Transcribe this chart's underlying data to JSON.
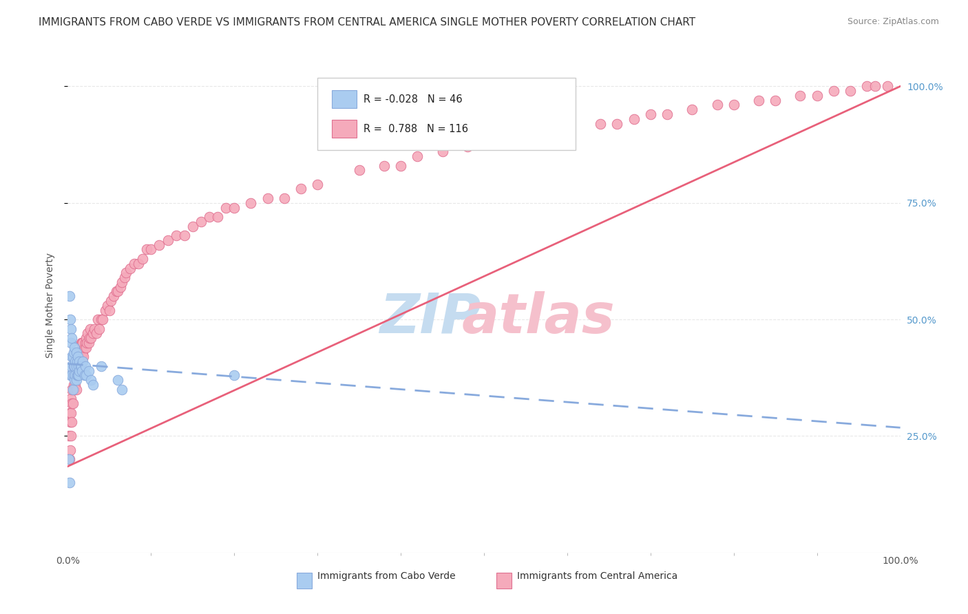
{
  "title": "IMMIGRANTS FROM CABO VERDE VS IMMIGRANTS FROM CENTRAL AMERICA SINGLE MOTHER POVERTY CORRELATION CHART",
  "source": "Source: ZipAtlas.com",
  "ylabel": "Single Mother Poverty",
  "y_tick_labels": [
    "25.0%",
    "50.0%",
    "75.0%",
    "100.0%"
  ],
  "y_tick_values": [
    0.25,
    0.5,
    0.75,
    1.0
  ],
  "x_tick_labels": [
    "0.0%",
    "100.0%"
  ],
  "x_tick_values": [
    0.0,
    1.0
  ],
  "legend_entries": [
    {
      "label": "Immigrants from Cabo Verde",
      "R": "-0.028",
      "N": "46",
      "color": "#aaccf0",
      "edge_color": "#88aadd"
    },
    {
      "label": "Immigrants from Central America",
      "R": "0.788",
      "N": "116",
      "color": "#f5aabb",
      "edge_color": "#e07090"
    }
  ],
  "cabo_verde_scatter": {
    "color": "#aaccf0",
    "edge_color": "#88aadd",
    "x": [
      0.001,
      0.002,
      0.002,
      0.003,
      0.003,
      0.004,
      0.004,
      0.004,
      0.005,
      0.005,
      0.005,
      0.006,
      0.006,
      0.007,
      0.007,
      0.007,
      0.008,
      0.008,
      0.008,
      0.009,
      0.009,
      0.01,
      0.01,
      0.01,
      0.011,
      0.011,
      0.012,
      0.012,
      0.013,
      0.013,
      0.014,
      0.014,
      0.015,
      0.016,
      0.017,
      0.018,
      0.02,
      0.021,
      0.022,
      0.025,
      0.028,
      0.03,
      0.04,
      0.06,
      0.065,
      0.2
    ],
    "y": [
      0.2,
      0.15,
      0.55,
      0.38,
      0.5,
      0.4,
      0.45,
      0.48,
      0.38,
      0.42,
      0.46,
      0.35,
      0.42,
      0.38,
      0.4,
      0.43,
      0.37,
      0.4,
      0.44,
      0.38,
      0.41,
      0.37,
      0.4,
      0.43,
      0.38,
      0.41,
      0.38,
      0.42,
      0.38,
      0.4,
      0.39,
      0.41,
      0.4,
      0.4,
      0.39,
      0.41,
      0.38,
      0.4,
      0.38,
      0.39,
      0.37,
      0.36,
      0.4,
      0.37,
      0.35,
      0.38
    ]
  },
  "central_america_scatter": {
    "color": "#f5aabb",
    "edge_color": "#e07090",
    "x": [
      0.001,
      0.002,
      0.002,
      0.003,
      0.003,
      0.004,
      0.004,
      0.004,
      0.005,
      0.005,
      0.005,
      0.006,
      0.006,
      0.007,
      0.007,
      0.008,
      0.008,
      0.008,
      0.009,
      0.009,
      0.01,
      0.01,
      0.01,
      0.011,
      0.011,
      0.012,
      0.012,
      0.013,
      0.013,
      0.014,
      0.015,
      0.015,
      0.016,
      0.016,
      0.017,
      0.017,
      0.018,
      0.018,
      0.019,
      0.02,
      0.021,
      0.022,
      0.022,
      0.023,
      0.024,
      0.025,
      0.026,
      0.027,
      0.028,
      0.03,
      0.032,
      0.034,
      0.036,
      0.038,
      0.04,
      0.042,
      0.045,
      0.048,
      0.05,
      0.052,
      0.055,
      0.058,
      0.06,
      0.063,
      0.065,
      0.068,
      0.07,
      0.075,
      0.08,
      0.085,
      0.09,
      0.095,
      0.1,
      0.11,
      0.12,
      0.13,
      0.14,
      0.15,
      0.16,
      0.17,
      0.18,
      0.19,
      0.2,
      0.22,
      0.24,
      0.26,
      0.28,
      0.3,
      0.35,
      0.38,
      0.4,
      0.42,
      0.45,
      0.48,
      0.5,
      0.52,
      0.55,
      0.58,
      0.6,
      0.64,
      0.66,
      0.68,
      0.7,
      0.72,
      0.75,
      0.78,
      0.8,
      0.83,
      0.85,
      0.88,
      0.9,
      0.92,
      0.94,
      0.96,
      0.97,
      0.985
    ],
    "y": [
      0.25,
      0.2,
      0.3,
      0.22,
      0.28,
      0.3,
      0.33,
      0.25,
      0.32,
      0.35,
      0.28,
      0.32,
      0.38,
      0.36,
      0.4,
      0.35,
      0.38,
      0.42,
      0.36,
      0.38,
      0.35,
      0.38,
      0.4,
      0.4,
      0.42,
      0.38,
      0.4,
      0.4,
      0.43,
      0.42,
      0.4,
      0.43,
      0.42,
      0.45,
      0.42,
      0.45,
      0.43,
      0.45,
      0.42,
      0.44,
      0.45,
      0.44,
      0.46,
      0.45,
      0.47,
      0.45,
      0.46,
      0.48,
      0.46,
      0.47,
      0.48,
      0.47,
      0.5,
      0.48,
      0.5,
      0.5,
      0.52,
      0.53,
      0.52,
      0.54,
      0.55,
      0.56,
      0.56,
      0.57,
      0.58,
      0.59,
      0.6,
      0.61,
      0.62,
      0.62,
      0.63,
      0.65,
      0.65,
      0.66,
      0.67,
      0.68,
      0.68,
      0.7,
      0.71,
      0.72,
      0.72,
      0.74,
      0.74,
      0.75,
      0.76,
      0.76,
      0.78,
      0.79,
      0.82,
      0.83,
      0.83,
      0.85,
      0.86,
      0.87,
      0.88,
      0.88,
      0.9,
      0.9,
      0.91,
      0.92,
      0.92,
      0.93,
      0.94,
      0.94,
      0.95,
      0.96,
      0.96,
      0.97,
      0.97,
      0.98,
      0.98,
      0.99,
      0.99,
      1.0,
      1.0,
      1.0
    ]
  },
  "cabo_verde_trend": {
    "x_start": 0.0,
    "x_end": 1.0,
    "y_start": 0.405,
    "y_end": 0.268,
    "color": "#88aadd",
    "linewidth": 2.0
  },
  "central_america_trend": {
    "x_start": 0.0,
    "x_end": 1.0,
    "y_start": 0.185,
    "y_end": 1.0,
    "color": "#e8607a",
    "linewidth": 2.0
  },
  "watermark_zip_color": "#c5dcf0",
  "watermark_atlas_color": "#f5c0cc",
  "background_color": "#ffffff",
  "grid_color": "#e8e8e8",
  "title_fontsize": 11,
  "axis_label_fontsize": 10,
  "right_tick_color": "#5599cc"
}
